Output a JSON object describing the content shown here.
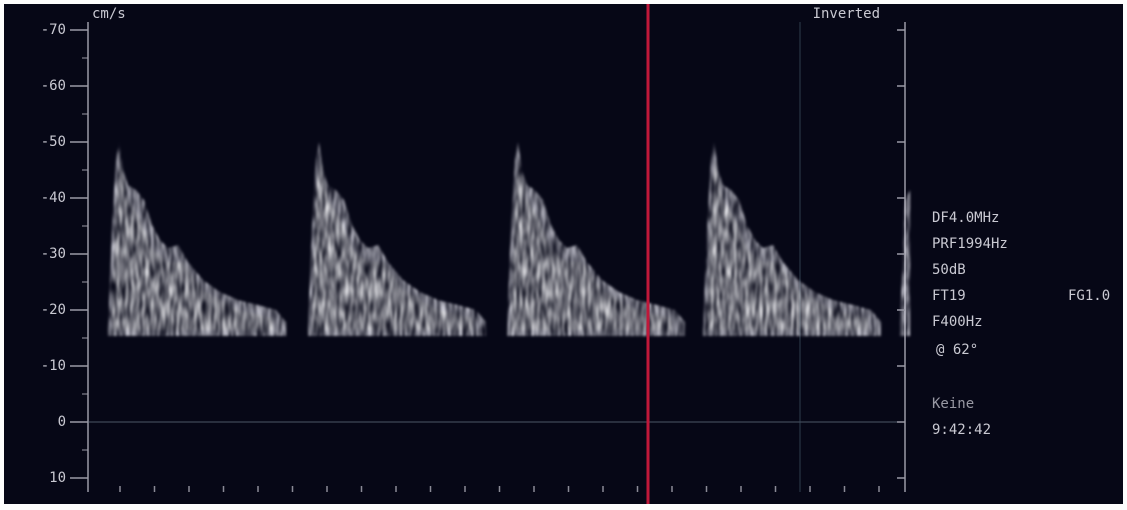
{
  "axis": {
    "unit": "cm/s",
    "labels": [
      "-70",
      "-60",
      "-50",
      "-40",
      "-30",
      "-20",
      "-10",
      "0",
      "10"
    ]
  },
  "mode": "Inverted",
  "settings": [
    "DF4.0MHz",
    "PRF1994Hz",
    "50dB",
    "FT19",
    "FG1.0",
    "F400Hz",
    "@ 62°"
  ],
  "status": {
    "label": "Keine",
    "time": "9:42:42"
  }
}
